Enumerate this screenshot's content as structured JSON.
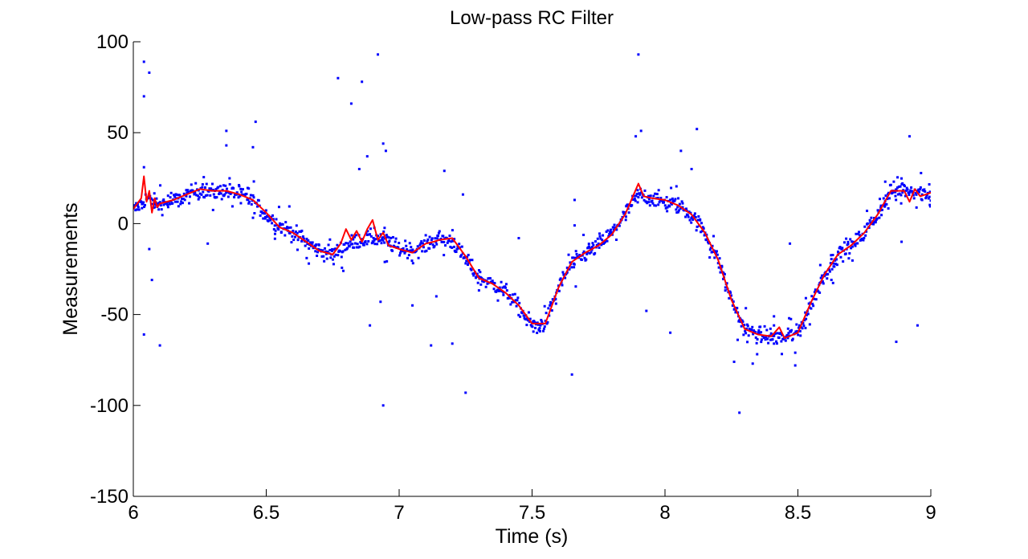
{
  "chart_data": {
    "type": "scatter",
    "title": "Low-pass RC Filter",
    "xlabel": "Time (s)",
    "ylabel": "Measurements",
    "xlim": [
      6,
      9
    ],
    "ylim": [
      -150,
      100
    ],
    "x_ticks": [
      6,
      6.5,
      7,
      7.5,
      8,
      8.5,
      9
    ],
    "x_tick_labels": [
      "6",
      "6.5",
      "7",
      "7.5",
      "8",
      "8.5",
      "9"
    ],
    "y_ticks": [
      100,
      50,
      0,
      -50,
      -100,
      -150
    ],
    "y_tick_labels": [
      "100",
      "50",
      "0",
      "-50",
      "-100",
      "-150"
    ],
    "grid": false,
    "legend": "none",
    "series": [
      {
        "kind": "scatter",
        "color": "#0000ff",
        "marker": "dot",
        "trend": {
          "x": [
            6.0,
            6.05,
            6.1,
            6.15,
            6.2,
            6.25,
            6.3,
            6.35,
            6.4,
            6.45,
            6.5,
            6.55,
            6.6,
            6.65,
            6.7,
            6.75,
            6.8,
            6.85,
            6.9,
            6.95,
            7.0,
            7.05,
            7.1,
            7.15,
            7.2,
            7.25,
            7.3,
            7.35,
            7.4,
            7.45,
            7.5,
            7.55,
            7.6,
            7.65,
            7.7,
            7.75,
            7.8,
            7.85,
            7.9,
            7.95,
            8.0,
            8.05,
            8.1,
            8.15,
            8.2,
            8.25,
            8.3,
            8.35,
            8.4,
            8.45,
            8.5,
            8.55,
            8.6,
            8.65,
            8.7,
            8.75,
            8.8,
            8.85,
            8.9,
            8.95,
            9.0
          ],
          "y": [
            7,
            14,
            10,
            12,
            15,
            19,
            17,
            18,
            16,
            12,
            5,
            -1,
            -5,
            -10,
            -15,
            -17,
            -12,
            -9,
            -8,
            -9,
            -14,
            -15,
            -12,
            -8,
            -10,
            -20,
            -30,
            -33,
            -37,
            -46,
            -56,
            -55,
            -35,
            -22,
            -17,
            -12,
            -5,
            5,
            16,
            14,
            12,
            10,
            5,
            -5,
            -20,
            -42,
            -58,
            -61,
            -62,
            -63,
            -60,
            -44,
            -28,
            -17,
            -13,
            -5,
            5,
            18,
            19,
            18,
            16
          ]
        },
        "outliers": [
          {
            "x": 6.04,
            "y": 89
          },
          {
            "x": 6.04,
            "y": 70
          },
          {
            "x": 6.06,
            "y": 83
          },
          {
            "x": 6.04,
            "y": 31
          },
          {
            "x": 6.06,
            "y": -14
          },
          {
            "x": 6.07,
            "y": -31
          },
          {
            "x": 6.04,
            "y": -61
          },
          {
            "x": 6.1,
            "y": -67
          },
          {
            "x": 6.35,
            "y": 51
          },
          {
            "x": 6.35,
            "y": 43
          },
          {
            "x": 6.45,
            "y": 42
          },
          {
            "x": 6.46,
            "y": 56
          },
          {
            "x": 6.28,
            "y": -11
          },
          {
            "x": 6.77,
            "y": 80
          },
          {
            "x": 6.82,
            "y": 66
          },
          {
            "x": 6.86,
            "y": 78
          },
          {
            "x": 6.92,
            "y": 93
          },
          {
            "x": 6.94,
            "y": 44
          },
          {
            "x": 6.88,
            "y": 37
          },
          {
            "x": 6.95,
            "y": 40
          },
          {
            "x": 6.85,
            "y": 30
          },
          {
            "x": 6.89,
            "y": -56
          },
          {
            "x": 6.93,
            "y": -43
          },
          {
            "x": 6.94,
            "y": -100
          },
          {
            "x": 6.79,
            "y": -26
          },
          {
            "x": 7.05,
            "y": -45
          },
          {
            "x": 7.12,
            "y": -67
          },
          {
            "x": 7.14,
            "y": -40
          },
          {
            "x": 7.17,
            "y": 29
          },
          {
            "x": 7.2,
            "y": -66
          },
          {
            "x": 7.25,
            "y": -93
          },
          {
            "x": 7.24,
            "y": 16
          },
          {
            "x": 7.45,
            "y": -8
          },
          {
            "x": 7.65,
            "y": -83
          },
          {
            "x": 7.66,
            "y": 13
          },
          {
            "x": 7.66,
            "y": -1
          },
          {
            "x": 7.9,
            "y": 93
          },
          {
            "x": 7.91,
            "y": 51
          },
          {
            "x": 7.93,
            "y": -48
          },
          {
            "x": 7.89,
            "y": 48
          },
          {
            "x": 8.02,
            "y": -60
          },
          {
            "x": 8.06,
            "y": 40
          },
          {
            "x": 8.1,
            "y": 30
          },
          {
            "x": 8.12,
            "y": 52
          },
          {
            "x": 8.26,
            "y": -76
          },
          {
            "x": 8.28,
            "y": -104
          },
          {
            "x": 8.33,
            "y": -77
          },
          {
            "x": 8.41,
            "y": -51
          },
          {
            "x": 8.41,
            "y": -56
          },
          {
            "x": 8.41,
            "y": -66
          },
          {
            "x": 8.49,
            "y": -71
          },
          {
            "x": 8.49,
            "y": -78
          },
          {
            "x": 8.47,
            "y": -11
          },
          {
            "x": 8.53,
            "y": -41
          },
          {
            "x": 8.87,
            "y": -65
          },
          {
            "x": 8.92,
            "y": 48
          },
          {
            "x": 8.95,
            "y": -56
          },
          {
            "x": 8.89,
            "y": -10
          },
          {
            "x": 8.76,
            "y": 7
          }
        ]
      },
      {
        "kind": "line",
        "color": "#ff0000",
        "x": [
          6.0,
          6.03,
          6.04,
          6.05,
          6.06,
          6.07,
          6.08,
          6.09,
          6.1,
          6.15,
          6.2,
          6.25,
          6.3,
          6.35,
          6.4,
          6.45,
          6.5,
          6.55,
          6.6,
          6.65,
          6.7,
          6.75,
          6.78,
          6.8,
          6.82,
          6.84,
          6.86,
          6.88,
          6.9,
          6.92,
          6.94,
          6.96,
          7.0,
          7.05,
          7.1,
          7.13,
          7.15,
          7.2,
          7.25,
          7.3,
          7.35,
          7.4,
          7.45,
          7.5,
          7.55,
          7.6,
          7.65,
          7.7,
          7.75,
          7.8,
          7.85,
          7.9,
          7.92,
          7.95,
          8.0,
          8.05,
          8.1,
          8.15,
          8.2,
          8.25,
          8.3,
          8.35,
          8.4,
          8.43,
          8.45,
          8.5,
          8.55,
          8.6,
          8.65,
          8.7,
          8.75,
          8.8,
          8.85,
          8.9,
          8.92,
          8.94,
          8.96,
          9.0
        ],
        "y": [
          8,
          14,
          26,
          12,
          18,
          6,
          14,
          9,
          11,
          13,
          16,
          19,
          18,
          18,
          16,
          13,
          6,
          -2,
          -5,
          -10,
          -15,
          -17,
          -11,
          -3,
          -9,
          -4,
          -10,
          -3,
          2,
          -9,
          -5,
          -12,
          -14,
          -16,
          -11,
          -10,
          -9,
          -8,
          -18,
          -30,
          -33,
          -38,
          -45,
          -55,
          -55,
          -35,
          -21,
          -16,
          -12,
          -6,
          5,
          22,
          15,
          14,
          13,
          10,
          5,
          -5,
          -20,
          -42,
          -58,
          -61,
          -62,
          -57,
          -63,
          -60,
          -43,
          -28,
          -17,
          -12,
          -5,
          5,
          18,
          18,
          12,
          19,
          15,
          17
        ]
      }
    ]
  }
}
